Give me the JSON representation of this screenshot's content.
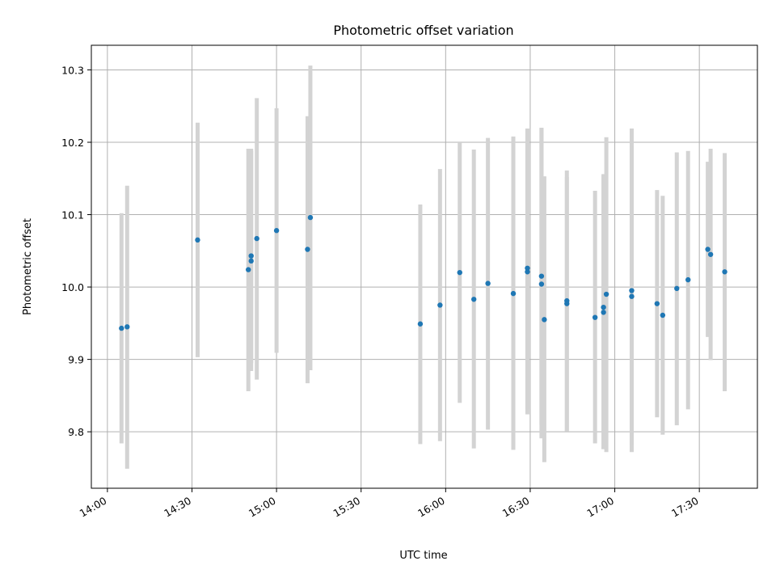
{
  "chart_data": {
    "type": "scatter",
    "title": "Photometric offset variation",
    "xlabel": "UTC time",
    "ylabel": "Photometric offset",
    "x_tick_labels": [
      "14:00",
      "14:30",
      "15:00",
      "15:30",
      "16:00",
      "16:30",
      "17:00",
      "17:30"
    ],
    "x_ticks_minutes": [
      840,
      870,
      900,
      930,
      960,
      990,
      1020,
      1050
    ],
    "y_ticks": [
      9.8,
      9.9,
      10.0,
      10.1,
      10.2,
      10.3
    ],
    "y_tick_labels": [
      "9.8",
      "9.9",
      "10.0",
      "10.1",
      "10.2",
      "10.3"
    ],
    "xlim_minutes": [
      834.3,
      1070.6
    ],
    "ylim": [
      9.722,
      10.334
    ],
    "grid": true,
    "colors": {
      "point": "#1f77b4",
      "errorbar": "#d3d3d3"
    },
    "series": [
      {
        "points": [
          {
            "time": "14:05",
            "y": 9.943,
            "err_low": 9.784,
            "err_high": 10.102
          },
          {
            "time": "14:07",
            "y": 9.945,
            "err_low": 9.749,
            "err_high": 10.14
          },
          {
            "time": "14:32",
            "y": 10.065,
            "err_low": 9.903,
            "err_high": 10.227
          },
          {
            "time": "14:50",
            "y": 10.024,
            "err_low": 9.856,
            "err_high": 10.191
          },
          {
            "time": "14:51",
            "y": 10.043,
            "err_low": 9.895,
            "err_high": 10.191
          },
          {
            "time": "14:51",
            "y": 10.036,
            "err_low": 9.884,
            "err_high": 10.188
          },
          {
            "time": "14:53",
            "y": 10.067,
            "err_low": 9.872,
            "err_high": 10.261
          },
          {
            "time": "15:00",
            "y": 10.078,
            "err_low": 9.909,
            "err_high": 10.247
          },
          {
            "time": "15:11",
            "y": 10.052,
            "err_low": 9.867,
            "err_high": 10.236
          },
          {
            "time": "15:12",
            "y": 10.096,
            "err_low": 9.885,
            "err_high": 10.306
          },
          {
            "time": "15:51",
            "y": 9.949,
            "err_low": 9.783,
            "err_high": 10.114
          },
          {
            "time": "15:58",
            "y": 9.975,
            "err_low": 9.787,
            "err_high": 10.163
          },
          {
            "time": "16:05",
            "y": 10.02,
            "err_low": 9.84,
            "err_high": 10.199
          },
          {
            "time": "16:10",
            "y": 9.983,
            "err_low": 9.777,
            "err_high": 10.19
          },
          {
            "time": "16:15",
            "y": 10.005,
            "err_low": 9.803,
            "err_high": 10.206
          },
          {
            "time": "16:24",
            "y": 9.991,
            "err_low": 9.775,
            "err_high": 10.208
          },
          {
            "time": "16:29",
            "y": 10.021,
            "err_low": 9.824,
            "err_high": 10.217
          },
          {
            "time": "16:29",
            "y": 10.026,
            "err_low": 9.832,
            "err_high": 10.219
          },
          {
            "time": "16:34",
            "y": 10.004,
            "err_low": 9.791,
            "err_high": 10.22
          },
          {
            "time": "16:34",
            "y": 10.015,
            "err_low": 9.81,
            "err_high": 10.22
          },
          {
            "time": "16:35",
            "y": 9.955,
            "err_low": 9.758,
            "err_high": 10.153
          },
          {
            "time": "16:43",
            "y": 9.981,
            "err_low": 9.801,
            "err_high": 10.161
          },
          {
            "time": "16:43",
            "y": 9.977,
            "err_low": 9.801,
            "err_high": 10.152
          },
          {
            "time": "16:53",
            "y": 9.958,
            "err_low": 9.784,
            "err_high": 10.133
          },
          {
            "time": "16:56",
            "y": 9.965,
            "err_low": 9.776,
            "err_high": 10.154
          },
          {
            "time": "16:56",
            "y": 9.972,
            "err_low": 9.776,
            "err_high": 10.156
          },
          {
            "time": "16:57",
            "y": 9.99,
            "err_low": 9.772,
            "err_high": 10.207
          },
          {
            "time": "17:06",
            "y": 9.995,
            "err_low": 9.772,
            "err_high": 10.219
          },
          {
            "time": "17:06",
            "y": 9.987,
            "err_low": 9.781,
            "err_high": 10.195
          },
          {
            "time": "17:15",
            "y": 9.977,
            "err_low": 9.82,
            "err_high": 10.134
          },
          {
            "time": "17:17",
            "y": 9.961,
            "err_low": 9.796,
            "err_high": 10.126
          },
          {
            "time": "17:22",
            "y": 9.998,
            "err_low": 9.809,
            "err_high": 10.186
          },
          {
            "time": "17:26",
            "y": 10.01,
            "err_low": 9.831,
            "err_high": 10.188
          },
          {
            "time": "17:33",
            "y": 10.052,
            "err_low": 9.931,
            "err_high": 10.173
          },
          {
            "time": "17:34",
            "y": 10.045,
            "err_low": 9.899,
            "err_high": 10.191
          },
          {
            "time": "17:39",
            "y": 10.021,
            "err_low": 9.856,
            "err_high": 10.185
          }
        ]
      }
    ]
  }
}
